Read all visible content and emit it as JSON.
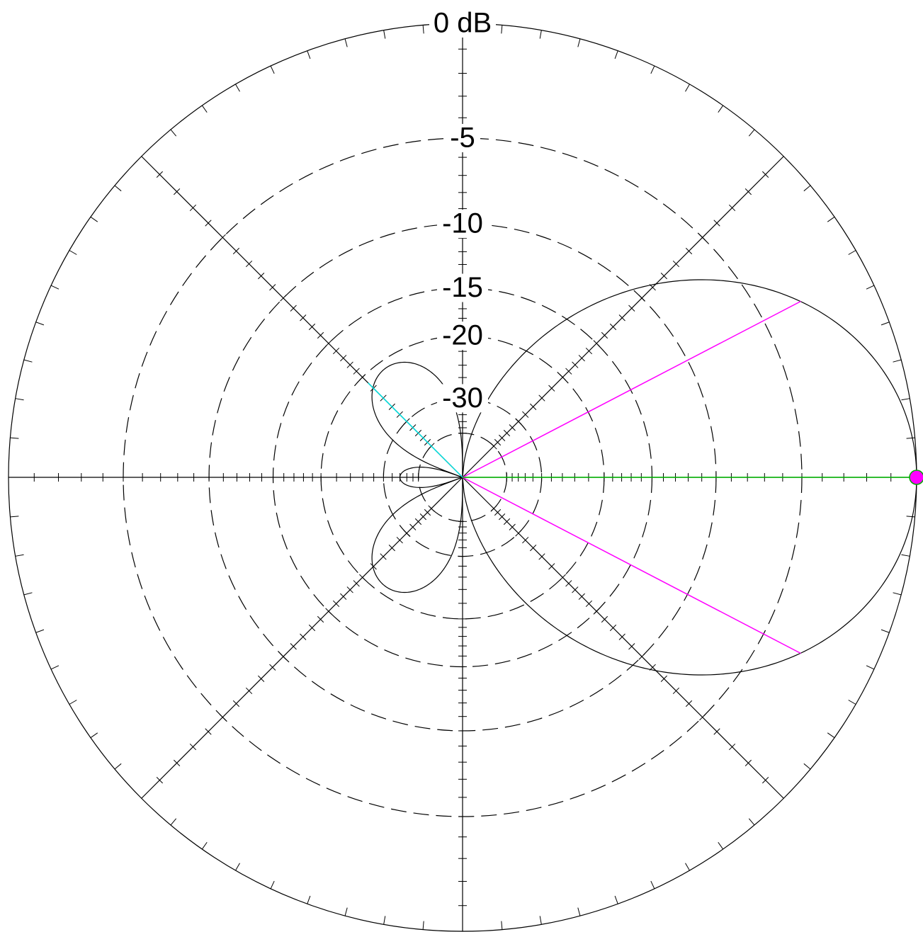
{
  "chart_data": {
    "type": "polar",
    "title": "",
    "radial_scale": "dB",
    "rings": [
      {
        "db": 0,
        "label": "0 dB",
        "style": "solid"
      },
      {
        "db": -5,
        "label": "-5",
        "style": "dashed"
      },
      {
        "db": -10,
        "label": "-10",
        "style": "dashed"
      },
      {
        "db": -15,
        "label": "-15",
        "style": "dashed"
      },
      {
        "db": -20,
        "label": "-20",
        "style": "dashed"
      },
      {
        "db": -30,
        "label": "-30",
        "style": "dashed"
      },
      {
        "db": -40,
        "label": "",
        "style": "dashed"
      }
    ],
    "axes_deg": [
      0,
      45,
      90,
      135,
      180,
      225,
      270,
      315
    ],
    "outer_tick_step_deg": 5,
    "series": [
      {
        "kind": "pattern",
        "color": "#000000",
        "main_lobe": {
          "center_deg": 0,
          "peak_db": 0,
          "half_power_beamwidth_deg": 55,
          "null_deg": 90
        },
        "side_lobes": [
          {
            "center_deg": 135,
            "peak_db": -21
          },
          {
            "center_deg": 225,
            "peak_db": -21
          },
          {
            "center_deg": 180,
            "peak_db": -34
          }
        ]
      }
    ],
    "markers": [
      {
        "kind": "beamwidth-line",
        "angle_deg": 27.5,
        "db": -3,
        "color": "#ff00ff"
      },
      {
        "kind": "beamwidth-line",
        "angle_deg": -27.5,
        "db": -3,
        "color": "#ff00ff"
      },
      {
        "kind": "peak-line",
        "angle_deg": 0,
        "db": 0,
        "color": "#00bb00"
      },
      {
        "kind": "peak-dot",
        "angle_deg": 0,
        "db": 0,
        "color": "#ff00ff"
      },
      {
        "kind": "sidelobe-line",
        "angle_deg": 135,
        "db": -21,
        "color": "#00dddd"
      }
    ]
  }
}
